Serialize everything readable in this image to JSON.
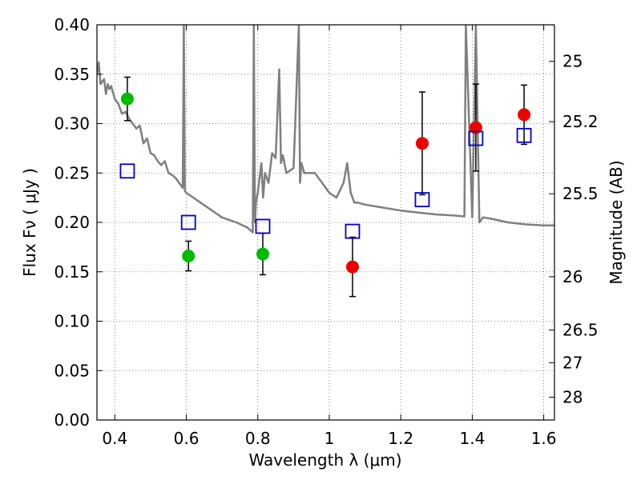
{
  "chart_data": {
    "type": "scatter",
    "xlabel": "Wavelength  λ (μm)",
    "ylabel": "Flux  Fν  ( μJy )",
    "y2label": "Magnitude (AB)",
    "xlim": [
      0.35,
      1.63
    ],
    "ylim": [
      0.0,
      0.4
    ],
    "grid": true,
    "x_ticks": [
      0.4,
      0.6,
      0.8,
      1.0,
      1.2,
      1.4,
      1.6
    ],
    "x_tick_labels": [
      "0.4",
      "0.6",
      "0.8",
      "1",
      "1.2",
      "1.4",
      "1.6"
    ],
    "y_ticks": [
      0.0,
      0.05,
      0.1,
      0.15,
      0.2,
      0.25,
      0.3,
      0.35,
      0.4
    ],
    "y_tick_labels": [
      "0.00",
      "0.05",
      "0.10",
      "0.15",
      "0.20",
      "0.25",
      "0.30",
      "0.35",
      "0.40"
    ],
    "y2_ticks": [
      {
        "label": "25",
        "flux": 0.363
      },
      {
        "label": "25.2",
        "flux": 0.302
      },
      {
        "label": "25.5",
        "flux": 0.229
      },
      {
        "label": "26",
        "flux": 0.145
      },
      {
        "label": "26.5",
        "flux": 0.091
      },
      {
        "label": "27",
        "flux": 0.058
      },
      {
        "label": "28",
        "flux": 0.023
      }
    ],
    "colors": {
      "green": "#00bb00",
      "red": "#ee0000",
      "model": "#0000cc",
      "spectrum": "#7f7f7f"
    },
    "series": [
      {
        "marker": "circle",
        "color": "#00bb00",
        "points": [
          {
            "x": 0.435,
            "y": 0.325,
            "err": 0.022
          },
          {
            "x": 0.606,
            "y": 0.166,
            "err": 0.015
          },
          {
            "x": 0.814,
            "y": 0.168,
            "err": 0.021
          }
        ]
      },
      {
        "marker": "circle",
        "color": "#ee0000",
        "points": [
          {
            "x": 1.065,
            "y": 0.155,
            "err": 0.03
          },
          {
            "x": 1.26,
            "y": 0.28,
            "err": 0.052
          },
          {
            "x": 1.41,
            "y": 0.296,
            "err": 0.044
          },
          {
            "x": 1.545,
            "y": 0.309,
            "err": 0.03
          }
        ]
      },
      {
        "marker": "open-square",
        "color": "#0000cc",
        "points": [
          {
            "x": 0.435,
            "y": 0.252
          },
          {
            "x": 0.606,
            "y": 0.2
          },
          {
            "x": 0.814,
            "y": 0.196
          },
          {
            "x": 1.065,
            "y": 0.191
          },
          {
            "x": 1.26,
            "y": 0.223
          },
          {
            "x": 1.41,
            "y": 0.285
          },
          {
            "x": 1.545,
            "y": 0.288
          }
        ]
      },
      {
        "marker": "line",
        "color": "#7f7f7f",
        "x": [
          0.35,
          0.355,
          0.36,
          0.37,
          0.375,
          0.38,
          0.385,
          0.39,
          0.4,
          0.41,
          0.42,
          0.43,
          0.44,
          0.45,
          0.46,
          0.47,
          0.48,
          0.49,
          0.5,
          0.51,
          0.52,
          0.53,
          0.54,
          0.55,
          0.56,
          0.57,
          0.58,
          0.59,
          0.593,
          0.596,
          0.6,
          0.62,
          0.66,
          0.7,
          0.74,
          0.77,
          0.786,
          0.789,
          0.792,
          0.795,
          0.8,
          0.81,
          0.815,
          0.82,
          0.83,
          0.84,
          0.85,
          0.86,
          0.865,
          0.87,
          0.88,
          0.9,
          0.915,
          0.918,
          0.922,
          0.93,
          0.96,
          1.0,
          1.02,
          1.04,
          1.05,
          1.06,
          1.065,
          1.07,
          1.08,
          1.1,
          1.15,
          1.2,
          1.25,
          1.3,
          1.35,
          1.378,
          1.382,
          1.4,
          1.41,
          1.42,
          1.43,
          1.45,
          1.5,
          1.55,
          1.6,
          1.63
        ],
        "y": [
          0.35,
          0.362,
          0.34,
          0.345,
          0.33,
          0.34,
          0.335,
          0.338,
          0.325,
          0.32,
          0.31,
          0.312,
          0.305,
          0.3,
          0.295,
          0.298,
          0.28,
          0.285,
          0.27,
          0.268,
          0.262,
          0.258,
          0.262,
          0.25,
          0.248,
          0.245,
          0.24,
          0.235,
          0.4,
          0.232,
          0.23,
          0.225,
          0.215,
          0.205,
          0.2,
          0.195,
          0.19,
          0.4,
          0.2,
          0.22,
          0.23,
          0.26,
          0.225,
          0.25,
          0.24,
          0.27,
          0.265,
          0.355,
          0.26,
          0.268,
          0.25,
          0.255,
          0.4,
          0.24,
          0.26,
          0.25,
          0.25,
          0.23,
          0.225,
          0.24,
          0.26,
          0.23,
          0.225,
          0.22,
          0.22,
          0.218,
          0.215,
          0.212,
          0.21,
          0.208,
          0.207,
          0.206,
          0.4,
          0.205,
          0.4,
          0.2,
          0.205,
          0.204,
          0.2,
          0.198,
          0.197,
          0.197
        ]
      }
    ]
  }
}
